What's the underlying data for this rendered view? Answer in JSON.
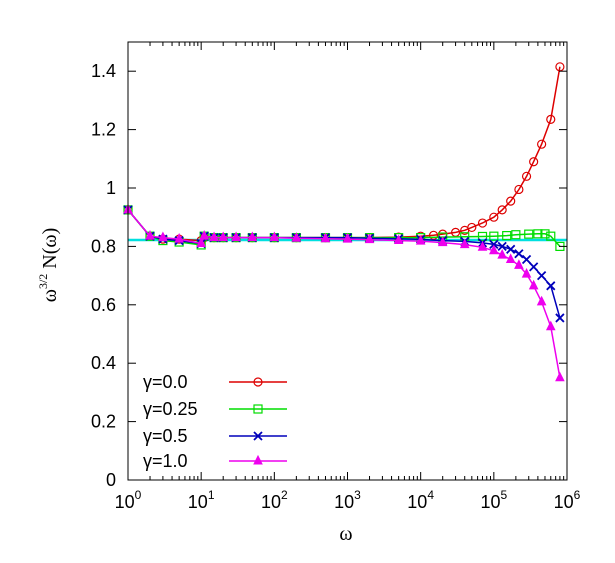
{
  "chart_data": {
    "type": "line",
    "title": "",
    "xlabel": "ω",
    "ylabel_main": "ω",
    "ylabel_sup": "3/2",
    "ylabel_rest": " N(ω)",
    "xscale": "log",
    "xlim": [
      1,
      1000000
    ],
    "ylim": [
      0,
      1.5
    ],
    "grid": false,
    "legend_position": "bottom-left",
    "y_ticks": [
      "0",
      "0.2",
      "0.4",
      "0.6",
      "0.8",
      "1",
      "1.2",
      "1.4"
    ],
    "y_tick_values": [
      0,
      0.2,
      0.4,
      0.6,
      0.8,
      1.0,
      1.2,
      1.4
    ],
    "x_ticks": [
      {
        "base": "10",
        "exp": "0"
      },
      {
        "base": "10",
        "exp": "1"
      },
      {
        "base": "10",
        "exp": "2"
      },
      {
        "base": "10",
        "exp": "3"
      },
      {
        "base": "10",
        "exp": "4"
      },
      {
        "base": "10",
        "exp": "5"
      },
      {
        "base": "10",
        "exp": "6"
      }
    ],
    "reference_line": {
      "y": 0.822,
      "color": "#00e0e0"
    },
    "series": [
      {
        "name": "γ=0.0",
        "color": "#dd0000",
        "marker": "circle",
        "x": [
          1,
          2,
          3,
          5,
          10,
          11,
          15,
          20,
          30,
          50,
          100,
          200,
          500,
          1000,
          2000,
          5000,
          10000,
          15000,
          20000,
          30000,
          40000,
          50000,
          70000,
          100000,
          130000,
          170000,
          220000,
          280000,
          350000,
          450000,
          600000,
          800000
        ],
        "y": [
          0.925,
          0.835,
          0.825,
          0.825,
          0.82,
          0.83,
          0.83,
          0.83,
          0.83,
          0.83,
          0.83,
          0.83,
          0.83,
          0.83,
          0.83,
          0.832,
          0.835,
          0.838,
          0.842,
          0.848,
          0.855,
          0.865,
          0.88,
          0.9,
          0.925,
          0.955,
          0.995,
          1.04,
          1.09,
          1.15,
          1.235,
          1.415
        ]
      },
      {
        "name": "γ=0.25",
        "color": "#00dd00",
        "marker": "square",
        "x": [
          1,
          2,
          3,
          5,
          10,
          11,
          15,
          20,
          30,
          50,
          100,
          200,
          500,
          1000,
          2000,
          5000,
          10000,
          20000,
          40000,
          70000,
          100000,
          150000,
          200000,
          300000,
          400000,
          500000,
          600000,
          800000
        ],
        "y": [
          0.925,
          0.835,
          0.82,
          0.815,
          0.805,
          0.835,
          0.83,
          0.83,
          0.83,
          0.83,
          0.83,
          0.83,
          0.83,
          0.83,
          0.83,
          0.83,
          0.83,
          0.832,
          0.833,
          0.834,
          0.835,
          0.837,
          0.84,
          0.842,
          0.843,
          0.843,
          0.835,
          0.8
        ]
      },
      {
        "name": "γ=0.5",
        "color": "#0000bb",
        "marker": "cross",
        "x": [
          1,
          2,
          3,
          5,
          10,
          11,
          15,
          20,
          30,
          50,
          100,
          200,
          500,
          1000,
          2000,
          5000,
          10000,
          20000,
          40000,
          70000,
          100000,
          130000,
          170000,
          220000,
          280000,
          350000,
          450000,
          600000,
          800000
        ],
        "y": [
          0.925,
          0.835,
          0.825,
          0.82,
          0.81,
          0.835,
          0.83,
          0.83,
          0.83,
          0.83,
          0.83,
          0.83,
          0.83,
          0.83,
          0.828,
          0.826,
          0.824,
          0.82,
          0.817,
          0.812,
          0.807,
          0.8,
          0.79,
          0.775,
          0.755,
          0.73,
          0.7,
          0.665,
          0.555
        ]
      },
      {
        "name": "γ=1.0",
        "color": "#ee00ee",
        "marker": "triangle",
        "x": [
          1,
          2,
          3,
          5,
          10,
          11,
          15,
          20,
          30,
          50,
          100,
          200,
          500,
          1000,
          2000,
          5000,
          10000,
          20000,
          40000,
          70000,
          100000,
          130000,
          170000,
          220000,
          280000,
          350000,
          450000,
          600000,
          800000
        ],
        "y": [
          0.925,
          0.835,
          0.83,
          0.825,
          0.81,
          0.835,
          0.83,
          0.83,
          0.83,
          0.83,
          0.83,
          0.828,
          0.826,
          0.825,
          0.823,
          0.82,
          0.818,
          0.813,
          0.806,
          0.797,
          0.785,
          0.77,
          0.755,
          0.735,
          0.705,
          0.665,
          0.61,
          0.525,
          0.35
        ]
      }
    ]
  }
}
